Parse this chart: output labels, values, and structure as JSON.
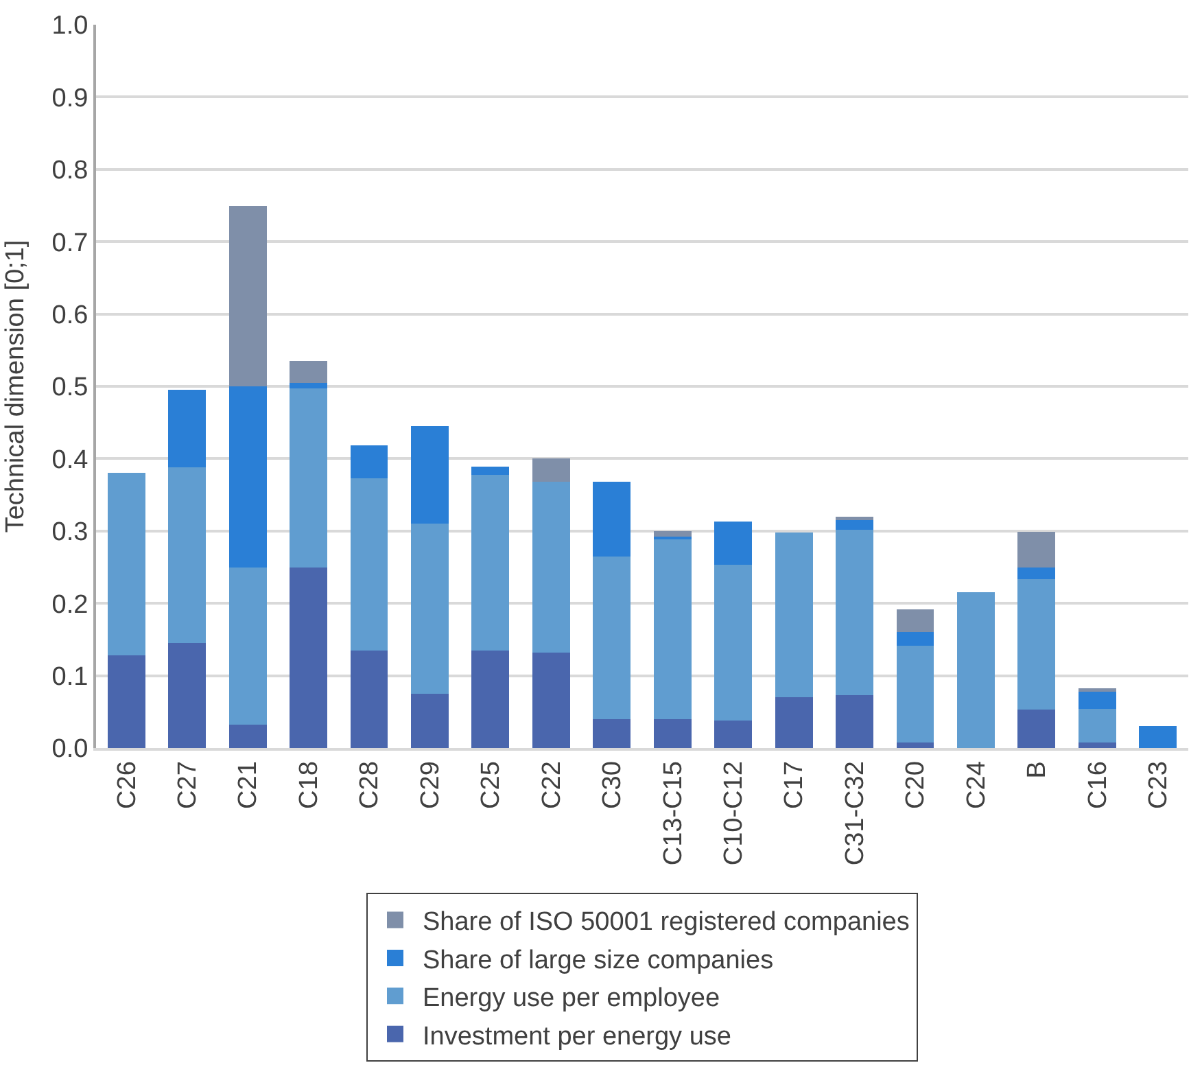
{
  "chart_data": {
    "type": "bar",
    "stacked": true,
    "ylabel": "Technical dimension [0;1]",
    "categories": [
      "C26",
      "C27",
      "C21",
      "C18",
      "C28",
      "C29",
      "C25",
      "C22",
      "C30",
      "C13-C15",
      "C10-C12",
      "C17",
      "C31-C32",
      "C20",
      "C24",
      "B",
      "C16",
      "C23"
    ],
    "series": [
      {
        "name": "Investment per energy use",
        "color": "#4a66ad",
        "values": [
          0.128,
          0.145,
          0.032,
          0.25,
          0.135,
          0.075,
          0.135,
          0.132,
          0.04,
          0.04,
          0.038,
          0.07,
          0.073,
          0.008,
          0,
          0.053,
          0.008,
          0
        ]
      },
      {
        "name": "Energy use per employee",
        "color": "#609dd0",
        "values": [
          0.252,
          0.243,
          0.218,
          0.247,
          0.238,
          0.235,
          0.243,
          0.236,
          0.225,
          0.248,
          0.215,
          0.228,
          0.229,
          0.133,
          0.215,
          0.18,
          0.046,
          0
        ]
      },
      {
        "name": "Share of large size companies",
        "color": "#2a7fd6",
        "values": [
          0,
          0.107,
          0.25,
          0.008,
          0.045,
          0.135,
          0.011,
          0,
          0.103,
          0.004,
          0.06,
          0,
          0.013,
          0.019,
          0,
          0.017,
          0.024,
          0.03
        ]
      },
      {
        "name": "Share of ISO 50001 registered companies",
        "color": "#7f8fa9",
        "values": [
          0,
          0,
          0.25,
          0.03,
          0,
          0,
          0,
          0.032,
          0,
          0.008,
          0,
          0,
          0.005,
          0.032,
          0,
          0.049,
          0.005,
          0
        ]
      }
    ],
    "ylim": [
      0,
      1
    ],
    "yticks": [
      {
        "value": 0,
        "label": "0.0"
      },
      {
        "value": 0.1,
        "label": "0.1"
      },
      {
        "value": 0.2,
        "label": "0.2"
      },
      {
        "value": 0.3,
        "label": "0.3"
      },
      {
        "value": 0.4,
        "label": "0.4"
      },
      {
        "value": 0.5,
        "label": "0.5"
      },
      {
        "value": 0.6,
        "label": "0.6"
      },
      {
        "value": 0.7,
        "label": "0.7"
      },
      {
        "value": 0.8,
        "label": "0.8"
      },
      {
        "value": 0.9,
        "label": "0.9"
      },
      {
        "value": 1,
        "label": "1.0"
      }
    ],
    "grid": "y",
    "legend": "bottom"
  }
}
